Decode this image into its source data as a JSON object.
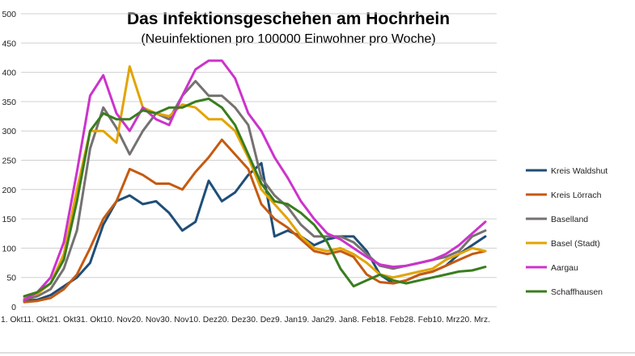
{
  "chart_data": {
    "type": "line",
    "title": "Das Infektionsgeschehen am Hochrhein",
    "subtitle": "(Neuinfektionen pro 100000 Einwohner pro Woche)",
    "xlabel": "",
    "ylabel": "",
    "ylim": [
      0,
      500
    ],
    "yticks": [
      0,
      50,
      100,
      150,
      200,
      250,
      300,
      350,
      400,
      450,
      500
    ],
    "grid": true,
    "legend_position": "right",
    "x_tick_labels": [
      "1. Okt",
      "11. Okt",
      "21. Okt",
      "31. Okt",
      "10. Nov",
      "20. Nov",
      "30. Nov",
      "10. Dez",
      "20. Dez",
      "30. Dez",
      "9. Jan",
      "19. Jan",
      "29. Jan",
      "8. Feb",
      "18. Feb",
      "28. Feb",
      "10. Mrz",
      "20. Mrz"
    ],
    "x_axis_line": "1. Okt11. Okt21. Okt31. Okt10. Nov20. Nov30. Nov10. Dez20. Dez30. Dez9. Jan19. Jan29. Jan8. Feb18. Feb28. Feb10. Mrz20. Mrz.",
    "x_step_days": 5,
    "series": [
      {
        "name": "Kreis Waldshut",
        "color": "#1F4E79",
        "values": [
          10,
          12,
          20,
          35,
          50,
          75,
          140,
          180,
          190,
          175,
          180,
          160,
          130,
          145,
          215,
          180,
          195,
          225,
          245,
          120,
          130,
          120,
          105,
          115,
          120,
          120,
          95,
          55,
          40,
          45,
          55,
          60,
          70,
          90,
          105,
          120
        ]
      },
      {
        "name": "Kreis Lörrach",
        "color": "#C55A11",
        "values": [
          8,
          10,
          15,
          30,
          55,
          100,
          150,
          180,
          235,
          225,
          210,
          210,
          200,
          230,
          255,
          285,
          260,
          235,
          175,
          150,
          135,
          115,
          95,
          90,
          95,
          85,
          55,
          42,
          40,
          45,
          55,
          60,
          70,
          80,
          90,
          95
        ]
      },
      {
        "name": "Baselland",
        "color": "#767171",
        "values": [
          12,
          18,
          30,
          65,
          130,
          270,
          340,
          305,
          260,
          300,
          330,
          320,
          360,
          385,
          360,
          360,
          340,
          310,
          220,
          190,
          170,
          140,
          120,
          120,
          120,
          110,
          90,
          70,
          65,
          70,
          75,
          80,
          85,
          95,
          120,
          130
        ]
      },
      {
        "name": "Basel (Stadt)",
        "color": "#E2A400",
        "values": [
          15,
          22,
          40,
          90,
          200,
          300,
          300,
          280,
          410,
          340,
          330,
          325,
          345,
          340,
          320,
          320,
          300,
          255,
          200,
          175,
          150,
          120,
          100,
          95,
          100,
          90,
          75,
          55,
          50,
          55,
          60,
          65,
          80,
          90,
          100,
          95
        ]
      },
      {
        "name": "Aargau",
        "color": "#CC33CC",
        "values": [
          12,
          25,
          50,
          110,
          230,
          360,
          395,
          330,
          300,
          340,
          320,
          310,
          360,
          405,
          420,
          420,
          390,
          330,
          300,
          255,
          220,
          180,
          150,
          125,
          115,
          100,
          85,
          72,
          68,
          70,
          75,
          80,
          90,
          105,
          125,
          145
        ]
      },
      {
        "name": "Schaffhausen",
        "color": "#3A7D1E",
        "values": [
          18,
          25,
          40,
          80,
          180,
          300,
          330,
          320,
          320,
          335,
          330,
          340,
          340,
          350,
          355,
          340,
          310,
          260,
          210,
          180,
          175,
          160,
          140,
          110,
          65,
          35,
          45,
          55,
          45,
          40,
          45,
          50,
          55,
          60,
          62,
          68
        ]
      }
    ]
  }
}
